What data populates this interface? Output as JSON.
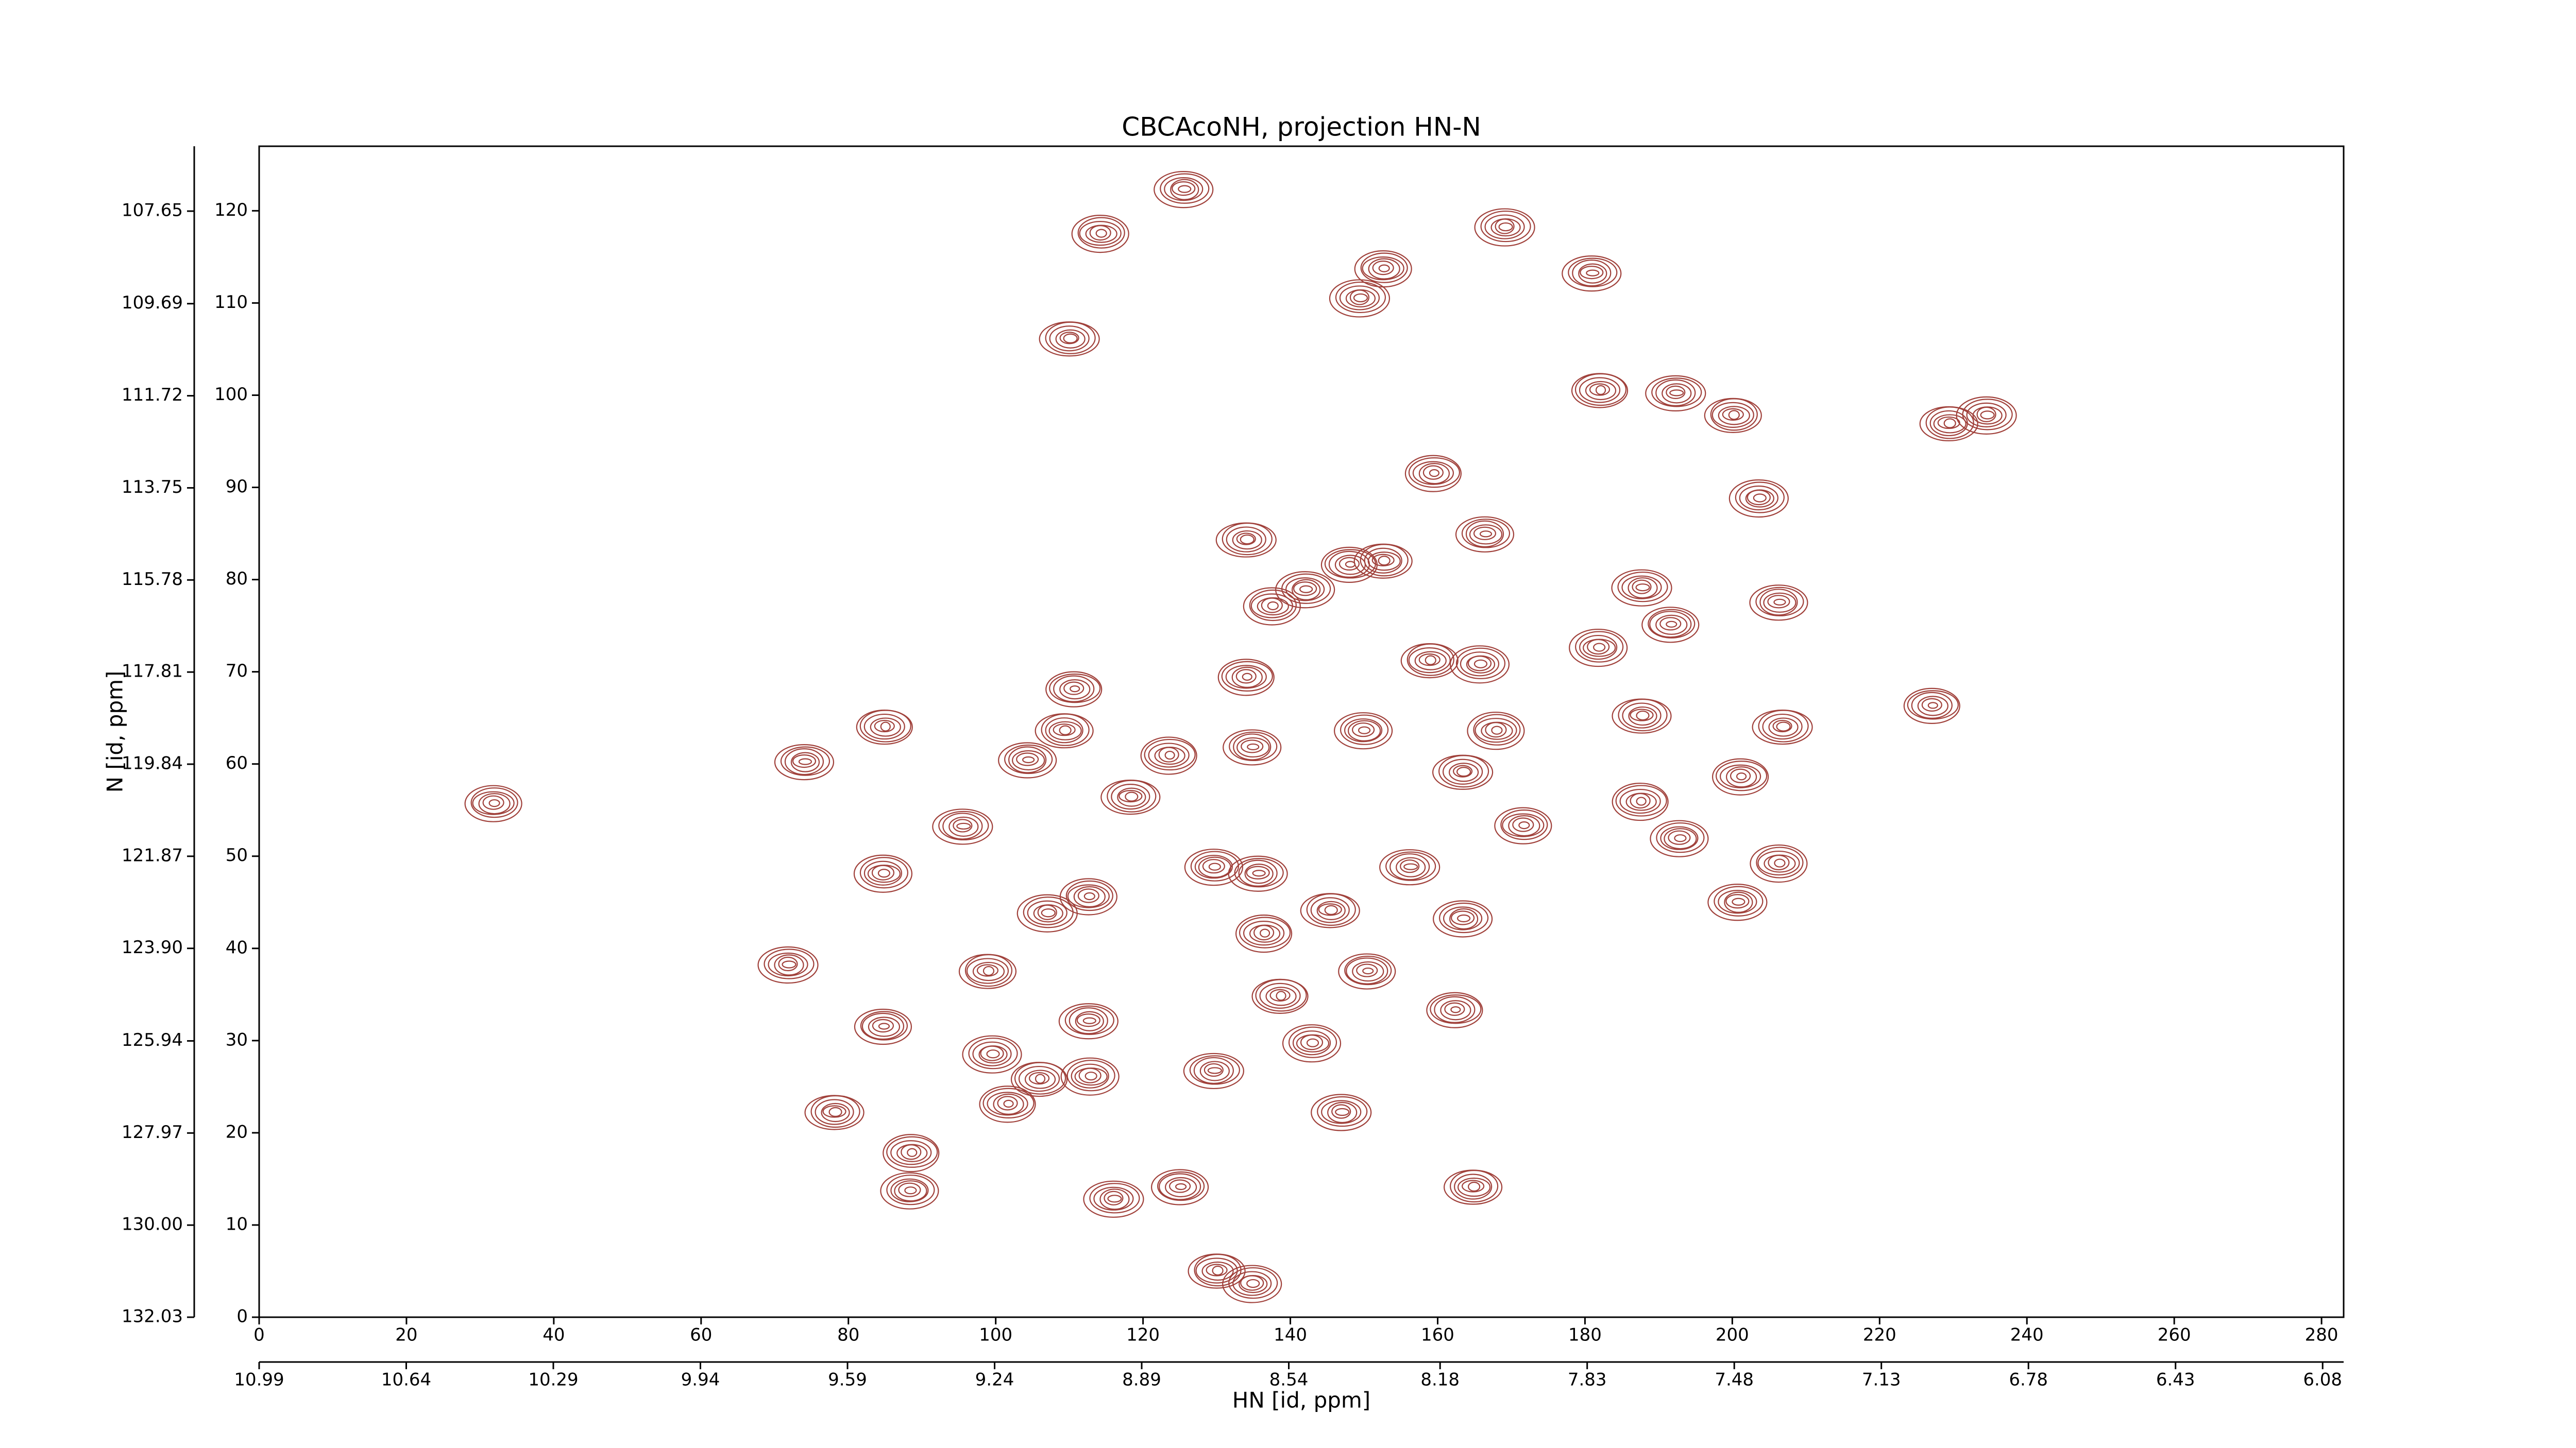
{
  "chart_data": {
    "type": "contour",
    "title": "CBCAcoNH, projection HN-N",
    "xlabel": "HN [id, ppm]",
    "ylabel": "N [id, ppm]",
    "xlim": [
      0,
      283
    ],
    "xticks": [
      0,
      20,
      40,
      60,
      80,
      100,
      120,
      140,
      160,
      180,
      200,
      220,
      240,
      260,
      280
    ],
    "ylim": [
      0,
      127
    ],
    "yticks": [
      0,
      10,
      20,
      30,
      40,
      50,
      60,
      70,
      80,
      90,
      100,
      110,
      120
    ],
    "x2lim": [
      10.99,
      6.03
    ],
    "x2ticks": [
      10.99,
      10.64,
      10.29,
      9.94,
      9.59,
      9.24,
      8.89,
      8.54,
      8.18,
      7.83,
      7.48,
      7.13,
      6.78,
      6.43,
      6.08
    ],
    "y2lim": [
      132.03,
      106.22
    ],
    "y2ticks": [
      132.03,
      {
        "value": 130,
        "label": "130.00"
      },
      127.97,
      125.94,
      {
        "value": 123.9,
        "label": "123.90"
      },
      121.87,
      119.84,
      117.81,
      115.78,
      113.75,
      111.72,
      109.69,
      107.65
    ],
    "color": "#a0403a",
    "peaks": {
      "x": [
        31.8,
        74,
        84.9,
        84.7,
        71.8,
        84.7,
        78.1,
        88.5,
        88.3,
        95.5,
        98.9,
        99.5,
        101.6,
        104.3,
        110,
        114.2,
        125.5,
        110.6,
        109.3,
        107,
        112.6,
        112.6,
        105.9,
        112.8,
        116,
        125,
        118.3,
        123.5,
        129.6,
        129.6,
        130,
        134.8,
        134,
        134.8,
        134,
        137.5,
        142,
        148,
        152.6,
        149.4,
        152.6,
        135.6,
        138.6,
        142.9,
        146.9,
        150.4,
        145.4,
        136.4,
        149.9,
        156.2,
        158.9,
        165.7,
        159.4,
        166.4,
        163.4,
        167.9,
        163.4,
        162.3,
        164.8,
        169.1,
        171.6,
        180.9,
        182,
        181.8,
        187.7,
        191.6,
        187.7,
        187.5,
        192.8,
        192.3,
        200.1,
        203.6,
        201.1,
        206.3,
        206.8,
        206.3,
        200.7,
        227.1,
        229.4,
        234.5
      ],
      "y": [
        55.7,
        60.2,
        64,
        48.1,
        38.2,
        31.5,
        22.2,
        17.8,
        13.7,
        53.2,
        37.5,
        28.5,
        23.1,
        60.4,
        106.1,
        117.5,
        122.3,
        68.1,
        63.6,
        43.8,
        45.6,
        32.1,
        25.8,
        26.1,
        12.8,
        14.1,
        56.4,
        60.9,
        48.8,
        26.7,
        5,
        3.6,
        69.4,
        61.8,
        84.3,
        77.1,
        78.9,
        81.6,
        82,
        110.5,
        113.7,
        48.1,
        34.8,
        29.7,
        22.2,
        37.5,
        44.1,
        41.6,
        63.6,
        48.8,
        71.2,
        70.8,
        91.5,
        84.9,
        59.1,
        63.6,
        43.2,
        33.3,
        14.1,
        118.2,
        53.3,
        113.2,
        100.5,
        72.6,
        79.1,
        75.1,
        65.2,
        55.9,
        51.9,
        100.2,
        97.8,
        88.8,
        58.6,
        77.5,
        64,
        49.2,
        45,
        66.3,
        96.9,
        97.8
      ]
    }
  }
}
